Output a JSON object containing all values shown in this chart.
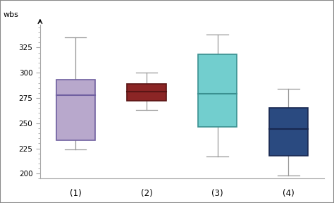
{
  "boxes": [
    {
      "label": "(1)",
      "whislo": 224,
      "q1": 233,
      "med": 278,
      "q3": 293,
      "whishi": 335,
      "face_color": "#b8a8cc",
      "edge_color": "#7060a0"
    },
    {
      "label": "(2)",
      "whislo": 263,
      "q1": 272,
      "med": 281,
      "q3": 289,
      "whishi": 300,
      "face_color": "#8b2525",
      "edge_color": "#5a1515"
    },
    {
      "label": "(3)",
      "whislo": 217,
      "q1": 246,
      "med": 279,
      "q3": 318,
      "whishi": 338,
      "face_color": "#72cece",
      "edge_color": "#3a9090"
    },
    {
      "label": "(4)",
      "whislo": 198,
      "q1": 218,
      "med": 244,
      "q3": 265,
      "whishi": 284,
      "face_color": "#2a4a80",
      "edge_color": "#182850"
    }
  ],
  "ylabel": "wbs",
  "ylim": [
    195,
    348
  ],
  "yticks_major": [
    200,
    225,
    250,
    275,
    300,
    325
  ],
  "background_color": "#ffffff",
  "box_width": 0.55,
  "whisker_color": "#999999",
  "cap_color": "#999999",
  "spine_color": "#aaaaaa",
  "frame_color": "#888888"
}
